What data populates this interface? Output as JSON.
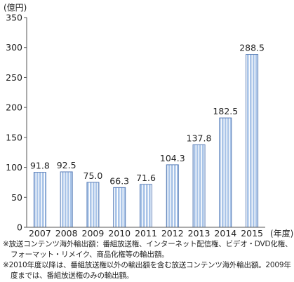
{
  "chart_data": {
    "type": "bar",
    "unit_label": "(億円)",
    "x_unit_label": "(年度)",
    "categories": [
      "2007",
      "2008",
      "2009",
      "2010",
      "2011",
      "2012",
      "2013",
      "2014",
      "2015"
    ],
    "values": [
      91.8,
      92.5,
      75.0,
      66.3,
      71.6,
      104.3,
      137.8,
      182.5,
      288.5
    ],
    "value_labels": [
      "91.8",
      "92.5",
      "75.0",
      "66.3",
      "71.6",
      "104.3",
      "137.8",
      "182.5",
      "288.5"
    ],
    "ylim": [
      0,
      350
    ],
    "yticks": [
      0,
      50,
      100,
      150,
      200,
      250,
      300,
      350
    ],
    "grid": false,
    "colors": {
      "bar_fill": "#a9c4e8",
      "bar_stripe": "#ffffff",
      "bar_stroke": "#5b7fb8",
      "axis": "#555555"
    }
  },
  "notes": [
    {
      "mark": "※",
      "text": "放送コンテンツ海外輸出額：番組放送権、インターネット配信権、ビデオ・DVD化権、フォーマット・リメイク、商品化権等の輸出額。"
    },
    {
      "mark": "※",
      "text": "2010年度以降は、番組放送権以外の輸出額を含む放送コンテンツ海外輸出額。2009年度までは、番組放送権のみの輸出額。"
    }
  ]
}
